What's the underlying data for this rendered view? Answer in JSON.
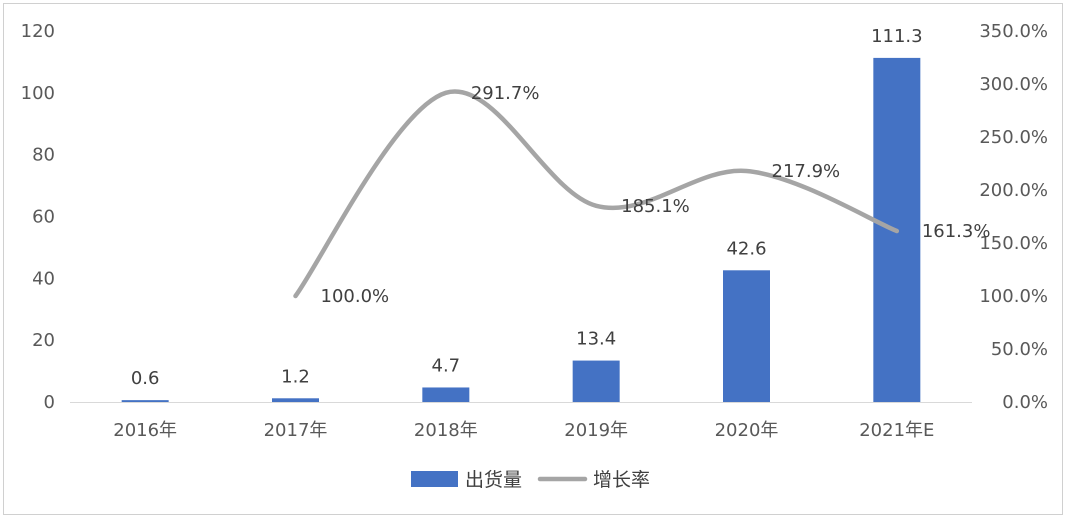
{
  "chart_data": {
    "type": "bar+line",
    "categories": [
      "2016年",
      "2017年",
      "2018年",
      "2019年",
      "2020年",
      "2021年E"
    ],
    "series": [
      {
        "name": "出货量",
        "type": "bar",
        "axis": "left",
        "values": [
          0.6,
          1.2,
          4.7,
          13.4,
          42.6,
          111.3
        ],
        "labels": [
          "0.6",
          "1.2",
          "4.7",
          "13.4",
          "42.6",
          "111.3"
        ],
        "color": "#4472C4"
      },
      {
        "name": "增长率",
        "type": "line",
        "smooth": true,
        "axis": "right",
        "values": [
          null,
          100.0,
          291.7,
          185.1,
          217.9,
          161.3
        ],
        "labels": [
          "",
          "100.0%",
          "291.7%",
          "185.1%",
          "217.9%",
          "161.3%"
        ],
        "color": "#A5A5A5"
      }
    ],
    "y_left": {
      "ylim": [
        0,
        120
      ],
      "ticks": [
        "0",
        "20",
        "40",
        "60",
        "80",
        "100",
        "120"
      ]
    },
    "y_right": {
      "ylim": [
        0,
        350
      ],
      "ticks": [
        "0.0%",
        "50.0%",
        "100.0%",
        "150.0%",
        "200.0%",
        "250.0%",
        "300.0%",
        "350.0%"
      ]
    },
    "legend": {
      "position": "bottom",
      "items": [
        "出货量",
        "增长率"
      ]
    },
    "title": "",
    "grid": false
  }
}
